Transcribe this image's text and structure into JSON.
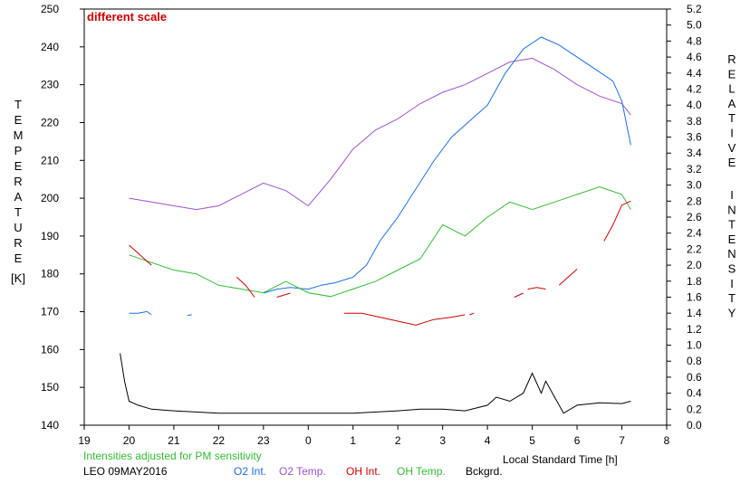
{
  "chart_data": {
    "type": "line",
    "annotation": "different scale",
    "left_axis_label": "TEMPERATURE",
    "left_axis_unit": "[K]",
    "right_axis_label": "RELATIVE INTENSITY",
    "x_axis_label": "Local Standard Time [h]",
    "note": "Intensities adjusted for PM sensitivity",
    "station_date": "LEO 09MAY2016",
    "x_ticks": [
      "19",
      "20",
      "21",
      "22",
      "23",
      "0",
      "1",
      "2",
      "3",
      "4",
      "5",
      "6",
      "7",
      "8"
    ],
    "x_range_hours": [
      19,
      32
    ],
    "left_ylim": [
      140,
      250
    ],
    "left_ticks": [
      250,
      240,
      230,
      220,
      210,
      200,
      190,
      180,
      170,
      160,
      150,
      140
    ],
    "right_ylim": [
      0.0,
      5.2
    ],
    "right_ticks": [
      "5.2",
      "5.0",
      "4.8",
      "4.6",
      "4.4",
      "4.2",
      "4.0",
      "3.8",
      "3.6",
      "3.4",
      "3.2",
      "3.0",
      "2.8",
      "2.6",
      "2.4",
      "2.2",
      "2.0",
      "1.8",
      "1.6",
      "1.4",
      "1.2",
      "1.0",
      "0.8",
      "0.6",
      "0.4",
      "0.2",
      "0.0"
    ],
    "legend": [
      {
        "label": "O2 Int.",
        "color": "#1a6fe0"
      },
      {
        "label": "O2 Temp.",
        "color": "#a050d0"
      },
      {
        "label": "OH Int.",
        "color": "#cc0000"
      },
      {
        "label": "OH Temp.",
        "color": "#33bb33"
      },
      {
        "label": "Bckgrd.",
        "color": "#000000"
      }
    ],
    "series": [
      {
        "name": "O2 Temp.",
        "axis": "left",
        "color": "#a050d0",
        "x": [
          20.0,
          20.5,
          21.0,
          21.5,
          22.0,
          22.5,
          23.0,
          23.5,
          24.0,
          24.5,
          25.0,
          25.5,
          26.0,
          26.5,
          27.0,
          27.5,
          28.0,
          28.5,
          29.0,
          29.5,
          30.0,
          30.5,
          31.0,
          31.2
        ],
        "y": [
          200,
          199,
          198,
          197,
          198,
          201,
          204,
          202,
          198,
          205,
          213,
          218,
          221,
          225,
          228,
          230,
          233,
          236,
          237,
          234,
          230,
          227,
          225,
          222
        ]
      },
      {
        "name": "O2 Int.",
        "axis": "right",
        "color": "#1a6fe0",
        "segments": [
          {
            "x": [
              20.0,
              20.2,
              20.4,
              20.5
            ],
            "y": [
              1.4,
              1.4,
              1.42,
              1.38
            ]
          },
          {
            "x": [
              21.3,
              21.4
            ],
            "y": [
              1.37,
              1.38
            ]
          },
          {
            "x": [
              23.0,
              23.3,
              23.6,
              24.0,
              24.3,
              24.6,
              25.0,
              25.3,
              25.6,
              26.0,
              26.4,
              26.8,
              27.2,
              27.6,
              28.0,
              28.4,
              28.8,
              29.2,
              29.6,
              30.0,
              30.4,
              30.8,
              31.0,
              31.2
            ],
            "y": [
              1.65,
              1.7,
              1.72,
              1.7,
              1.75,
              1.78,
              1.85,
              2.0,
              2.3,
              2.6,
              2.95,
              3.3,
              3.6,
              3.8,
              4.0,
              4.4,
              4.7,
              4.85,
              4.75,
              4.6,
              4.45,
              4.3,
              4.05,
              3.5
            ]
          }
        ]
      },
      {
        "name": "OH Temp.",
        "axis": "left",
        "color": "#33bb33",
        "x": [
          20.0,
          20.5,
          21.0,
          21.5,
          22.0,
          22.5,
          23.0,
          23.5,
          24.0,
          24.5,
          25.0,
          25.5,
          26.0,
          26.5,
          27.0,
          27.5,
          28.0,
          28.5,
          29.0,
          29.5,
          30.0,
          30.5,
          31.0,
          31.2
        ],
        "y": [
          185,
          183,
          181,
          180,
          177,
          176,
          175,
          178,
          175,
          174,
          176,
          178,
          181,
          184,
          193,
          190,
          195,
          199,
          197,
          199,
          201,
          203,
          201,
          197
        ]
      },
      {
        "name": "OH Int.",
        "axis": "right",
        "color": "#cc0000",
        "segments": [
          {
            "x": [
              20.0,
              20.2,
              20.4,
              20.5
            ],
            "y": [
              2.25,
              2.15,
              2.05,
              2.0
            ]
          },
          {
            "x": [
              22.4,
              22.6,
              22.8
            ],
            "y": [
              1.85,
              1.75,
              1.6
            ]
          },
          {
            "x": [
              23.3,
              23.6
            ],
            "y": [
              1.6,
              1.65
            ]
          },
          {
            "x": [
              24.8,
              25.2,
              25.6,
              26.0,
              26.4,
              26.8,
              27.2,
              27.5
            ],
            "y": [
              1.4,
              1.4,
              1.35,
              1.3,
              1.25,
              1.32,
              1.35,
              1.38
            ]
          },
          {
            "x": [
              27.6,
              27.7
            ],
            "y": [
              1.38,
              1.4
            ]
          },
          {
            "x": [
              28.6,
              28.8
            ],
            "y": [
              1.6,
              1.65
            ]
          },
          {
            "x": [
              28.9,
              29.1,
              29.3
            ],
            "y": [
              1.7,
              1.72,
              1.7
            ]
          },
          {
            "x": [
              29.6,
              29.8,
              30.0
            ],
            "y": [
              1.75,
              1.85,
              1.95
            ]
          },
          {
            "x": [
              30.6,
              30.8,
              31.0,
              31.2
            ],
            "y": [
              2.3,
              2.5,
              2.75,
              2.8
            ]
          }
        ]
      },
      {
        "name": "Bckgrd.",
        "axis": "right",
        "color": "#000000",
        "x": [
          19.8,
          19.9,
          20.0,
          20.2,
          20.5,
          21.0,
          22.0,
          23.0,
          24.0,
          25.0,
          26.0,
          26.5,
          27.0,
          27.5,
          28.0,
          28.2,
          28.5,
          28.8,
          29.0,
          29.2,
          29.3,
          29.5,
          29.7,
          30.0,
          30.5,
          31.0,
          31.2
        ],
        "y": [
          0.9,
          0.55,
          0.3,
          0.25,
          0.2,
          0.18,
          0.15,
          0.15,
          0.15,
          0.15,
          0.18,
          0.2,
          0.2,
          0.18,
          0.25,
          0.35,
          0.3,
          0.4,
          0.65,
          0.4,
          0.55,
          0.35,
          0.15,
          0.25,
          0.28,
          0.27,
          0.3
        ]
      }
    ]
  }
}
